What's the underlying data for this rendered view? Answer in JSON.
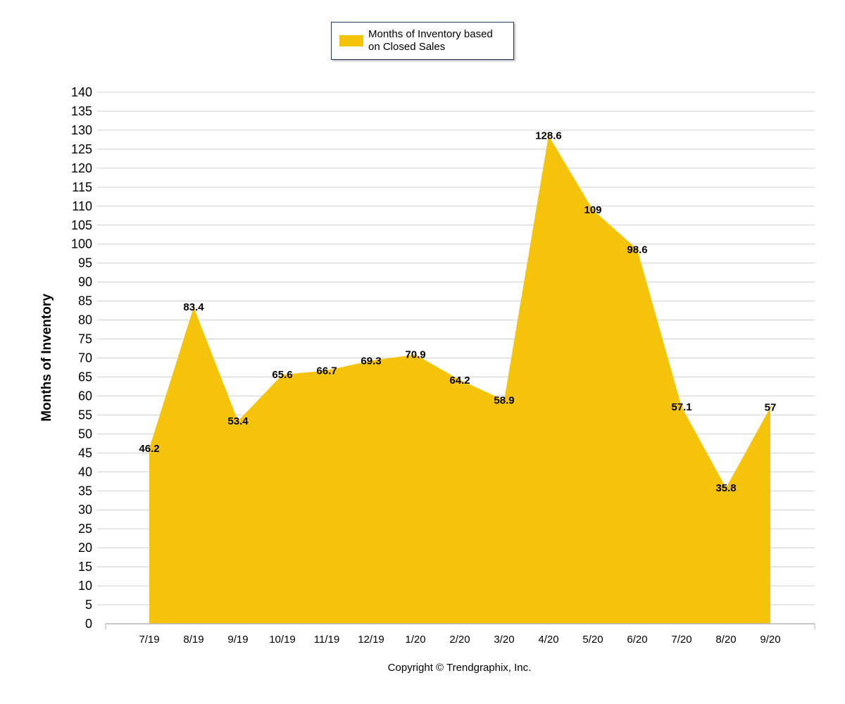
{
  "legend": {
    "line1": "Months of Inventory based",
    "line2": "on Closed Sales",
    "swatch_color": "#F6C30B"
  },
  "footer": "Copyright © Trendgraphix, Inc.",
  "chart_data": {
    "type": "area",
    "ylabel": "Months of Inventory",
    "xlabel": "",
    "ylim": [
      0,
      140
    ],
    "ytick_step": 5,
    "grid": true,
    "legend_position": "top-center",
    "categories": [
      "7/19",
      "8/19",
      "9/19",
      "10/19",
      "11/19",
      "12/19",
      "1/20",
      "2/20",
      "3/20",
      "4/20",
      "5/20",
      "6/20",
      "7/20",
      "8/20",
      "9/20"
    ],
    "series": [
      {
        "name": "Months of Inventory based on Closed Sales",
        "color": "#F6C30B",
        "values": [
          46.2,
          83.4,
          53.4,
          65.6,
          66.7,
          69.3,
          70.9,
          64.2,
          58.9,
          128.6,
          109,
          98.6,
          57.1,
          35.8,
          57
        ]
      }
    ]
  }
}
